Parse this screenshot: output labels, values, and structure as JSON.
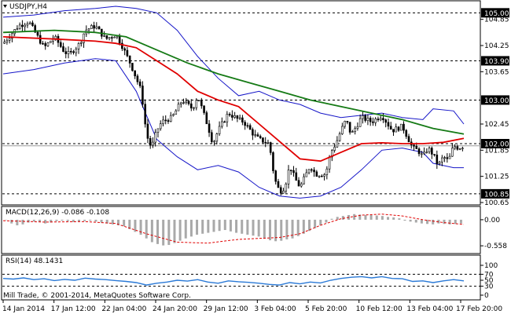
{
  "chart_title": "USDJPY,H4",
  "colors": {
    "background": "#ffffff",
    "candle": "#000000",
    "ma_red": "#e00000",
    "ma_green": "#157a15",
    "bands": "#1515c8",
    "macd_hist": "#a9a9a9",
    "macd_signal": "#e00000",
    "rsi": "#2a79d6",
    "level_line": "#000000",
    "price_tag_bg": "#000000",
    "price_tag_fg": "#ffffff"
  },
  "chart_data": {
    "type": "candlestick",
    "symbol": "USDJPY",
    "timeframe": "H4",
    "price_ylim": [
      100.65,
      105.15
    ],
    "price_ticks": [
      "104.85",
      "104.25",
      "103.65",
      "102.45",
      "101.85",
      "101.25",
      "100.65"
    ],
    "levels": [
      {
        "value": 105.0,
        "label": "105.00"
      },
      {
        "value": 103.9,
        "label": "103.90"
      },
      {
        "value": 103.0,
        "label": "103.00"
      },
      {
        "value": 102.0,
        "label": "102.00"
      },
      {
        "value": 100.85,
        "label": "100.85"
      }
    ],
    "current_price": 101.95,
    "x_labels": [
      "14 Jan 2014",
      "17 Jan 12:00",
      "22 Jan 04:00",
      "24 Jan 20:00",
      "29 Jan 12:00",
      "3 Feb 04:00",
      "5 Feb 20:00",
      "10 Feb 12:00",
      "13 Feb 04:00",
      "17 Feb 20:00"
    ],
    "price_path": [
      [
        0,
        104.3
      ],
      [
        3,
        104.7
      ],
      [
        5,
        104.8
      ],
      [
        7,
        104.4
      ],
      [
        8,
        104.2
      ],
      [
        10,
        104.45
      ],
      [
        12,
        104.1
      ],
      [
        13,
        104.05
      ],
      [
        15,
        104.3
      ],
      [
        16,
        104.6
      ],
      [
        18,
        104.7
      ],
      [
        20,
        104.4
      ],
      [
        22,
        104.5
      ],
      [
        23,
        104.3
      ],
      [
        25,
        103.8
      ],
      [
        27,
        103.2
      ],
      [
        28,
        102.2
      ],
      [
        29,
        101.9
      ],
      [
        30,
        102.3
      ],
      [
        31,
        102.5
      ],
      [
        33,
        102.6
      ],
      [
        35,
        103.0
      ],
      [
        37,
        102.8
      ],
      [
        38,
        103.1
      ],
      [
        40,
        102.4
      ],
      [
        41,
        102.0
      ],
      [
        42,
        102.3
      ],
      [
        44,
        102.7
      ],
      [
        46,
        102.55
      ],
      [
        47,
        102.5
      ],
      [
        49,
        102.2
      ],
      [
        50,
        102.1
      ],
      [
        52,
        102.0
      ],
      [
        53,
        101.2
      ],
      [
        54,
        100.9
      ],
      [
        55,
        101.0
      ],
      [
        56,
        101.5
      ],
      [
        57,
        101.2
      ],
      [
        58,
        101.0
      ],
      [
        60,
        101.5
      ],
      [
        61,
        101.3
      ],
      [
        63,
        101.3
      ],
      [
        64,
        101.8
      ],
      [
        65,
        102.0
      ],
      [
        66,
        102.3
      ],
      [
        67,
        102.55
      ],
      [
        68,
        102.2
      ],
      [
        70,
        102.6
      ],
      [
        72,
        102.5
      ],
      [
        74,
        102.65
      ],
      [
        76,
        102.3
      ],
      [
        78,
        102.4
      ],
      [
        80,
        101.9
      ],
      [
        81,
        101.85
      ],
      [
        82,
        101.7
      ],
      [
        83,
        101.9
      ],
      [
        84,
        101.75
      ],
      [
        85,
        101.5
      ],
      [
        86,
        101.7
      ],
      [
        87,
        101.6
      ],
      [
        88,
        101.95
      ],
      [
        89,
        101.9
      ],
      [
        90,
        101.95
      ]
    ],
    "ma_red": [
      [
        0,
        104.45
      ],
      [
        10,
        104.4
      ],
      [
        18,
        104.35
      ],
      [
        22,
        104.3
      ],
      [
        26,
        104.2
      ],
      [
        30,
        103.9
      ],
      [
        34,
        103.6
      ],
      [
        38,
        103.2
      ],
      [
        42,
        103.0
      ],
      [
        46,
        102.85
      ],
      [
        50,
        102.45
      ],
      [
        54,
        102.05
      ],
      [
        58,
        101.65
      ],
      [
        62,
        101.6
      ],
      [
        66,
        101.8
      ],
      [
        70,
        102.0
      ],
      [
        74,
        102.02
      ],
      [
        78,
        102.0
      ],
      [
        82,
        102.0
      ],
      [
        86,
        102.03
      ],
      [
        90,
        102.12
      ]
    ],
    "ma_green": [
      [
        0,
        104.55
      ],
      [
        10,
        104.6
      ],
      [
        18,
        104.55
      ],
      [
        24,
        104.45
      ],
      [
        30,
        104.15
      ],
      [
        36,
        103.85
      ],
      [
        42,
        103.6
      ],
      [
        48,
        103.4
      ],
      [
        54,
        103.2
      ],
      [
        60,
        103.0
      ],
      [
        66,
        102.85
      ],
      [
        72,
        102.7
      ],
      [
        78,
        102.55
      ],
      [
        84,
        102.35
      ],
      [
        90,
        102.22
      ]
    ],
    "band_upper": [
      [
        0,
        104.9
      ],
      [
        6,
        104.95
      ],
      [
        12,
        105.05
      ],
      [
        18,
        105.1
      ],
      [
        22,
        105.15
      ],
      [
        26,
        105.1
      ],
      [
        30,
        105.0
      ],
      [
        34,
        104.6
      ],
      [
        38,
        104.0
      ],
      [
        42,
        103.5
      ],
      [
        46,
        103.1
      ],
      [
        50,
        103.2
      ],
      [
        54,
        103.0
      ],
      [
        58,
        102.9
      ],
      [
        62,
        102.7
      ],
      [
        66,
        102.6
      ],
      [
        70,
        102.65
      ],
      [
        74,
        102.7
      ],
      [
        78,
        102.6
      ],
      [
        82,
        102.55
      ],
      [
        84,
        102.8
      ],
      [
        88,
        102.75
      ],
      [
        90,
        102.45
      ]
    ],
    "band_lower": [
      [
        0,
        103.6
      ],
      [
        6,
        103.7
      ],
      [
        12,
        103.85
      ],
      [
        18,
        103.95
      ],
      [
        22,
        103.9
      ],
      [
        26,
        103.2
      ],
      [
        30,
        102.1
      ],
      [
        34,
        101.7
      ],
      [
        38,
        101.4
      ],
      [
        42,
        101.5
      ],
      [
        46,
        101.35
      ],
      [
        50,
        101.0
      ],
      [
        54,
        100.8
      ],
      [
        58,
        100.75
      ],
      [
        62,
        100.8
      ],
      [
        66,
        101.0
      ],
      [
        70,
        101.4
      ],
      [
        74,
        101.85
      ],
      [
        78,
        101.9
      ],
      [
        82,
        101.8
      ],
      [
        84,
        101.55
      ],
      [
        88,
        101.45
      ],
      [
        90,
        101.45
      ]
    ],
    "macd": {
      "label": "MACD(12,26,9) -0.086 -0.108",
      "ylim": [
        -0.64,
        0.2
      ],
      "ticks": [
        "0.00",
        "-0.558"
      ],
      "hist": [
        0,
        -0.08,
        -0.12,
        -0.1,
        -0.06,
        -0.04,
        -0.05,
        -0.08,
        -0.06,
        -0.03,
        -0.02,
        -0.03,
        -0.05,
        -0.04,
        -0.03,
        -0.02,
        -0.04,
        -0.06,
        -0.08,
        -0.1,
        -0.12,
        -0.14,
        -0.2,
        -0.26,
        -0.32,
        -0.4,
        -0.48,
        -0.52,
        -0.55,
        -0.54,
        -0.5,
        -0.45,
        -0.4,
        -0.36,
        -0.32,
        -0.3,
        -0.28,
        -0.26,
        -0.24,
        -0.22,
        -0.25,
        -0.28,
        -0.3,
        -0.32,
        -0.34,
        -0.36,
        -0.4,
        -0.44,
        -0.46,
        -0.45,
        -0.42,
        -0.4,
        -0.35,
        -0.3,
        -0.24,
        -0.18,
        -0.12,
        -0.06,
        0.02,
        0.06,
        0.08,
        0.1,
        0.12,
        0.11,
        0.1,
        0.1,
        0.09,
        0.08,
        0.06,
        0.05,
        0.03,
        -0.02,
        -0.04,
        -0.06,
        -0.08,
        -0.09,
        -0.1,
        -0.08,
        -0.09,
        -0.1,
        -0.09,
        -0.08
      ],
      "signal": [
        [
          0,
          -0.02
        ],
        [
          8,
          -0.05
        ],
        [
          16,
          -0.04
        ],
        [
          22,
          -0.08
        ],
        [
          28,
          -0.3
        ],
        [
          34,
          -0.48
        ],
        [
          40,
          -0.5
        ],
        [
          46,
          -0.42
        ],
        [
          50,
          -0.4
        ],
        [
          54,
          -0.38
        ],
        [
          58,
          -0.3
        ],
        [
          62,
          -0.12
        ],
        [
          66,
          0.02
        ],
        [
          70,
          0.1
        ],
        [
          74,
          0.12
        ],
        [
          78,
          0.08
        ],
        [
          82,
          0.0
        ],
        [
          86,
          -0.06
        ],
        [
          90,
          -0.1
        ]
      ]
    },
    "rsi": {
      "label": "RSI(14) 48.1431",
      "ylim": [
        0,
        100
      ],
      "ticks": [
        "100",
        "70",
        "50",
        "30",
        "0"
      ],
      "values": [
        [
          0,
          56
        ],
        [
          2,
          54
        ],
        [
          4,
          58
        ],
        [
          6,
          52
        ],
        [
          8,
          55
        ],
        [
          10,
          49
        ],
        [
          12,
          53
        ],
        [
          14,
          50
        ],
        [
          16,
          57
        ],
        [
          18,
          54
        ],
        [
          20,
          52
        ],
        [
          22,
          49
        ],
        [
          24,
          46
        ],
        [
          26,
          42
        ],
        [
          28,
          34
        ],
        [
          30,
          40
        ],
        [
          32,
          44
        ],
        [
          34,
          50
        ],
        [
          36,
          47
        ],
        [
          38,
          52
        ],
        [
          40,
          44
        ],
        [
          42,
          40
        ],
        [
          44,
          48
        ],
        [
          46,
          45
        ],
        [
          48,
          43
        ],
        [
          50,
          40
        ],
        [
          52,
          36
        ],
        [
          54,
          34
        ],
        [
          56,
          42
        ],
        [
          58,
          38
        ],
        [
          60,
          44
        ],
        [
          62,
          41
        ],
        [
          64,
          50
        ],
        [
          66,
          56
        ],
        [
          68,
          60
        ],
        [
          70,
          62
        ],
        [
          72,
          58
        ],
        [
          74,
          62
        ],
        [
          76,
          56
        ],
        [
          78,
          55
        ],
        [
          80,
          46
        ],
        [
          82,
          48
        ],
        [
          84,
          42
        ],
        [
          86,
          48
        ],
        [
          88,
          52
        ],
        [
          90,
          48
        ]
      ]
    }
  },
  "copyright": "Mill Trade, © 2001-2014, MetaQuotes Software Corp."
}
